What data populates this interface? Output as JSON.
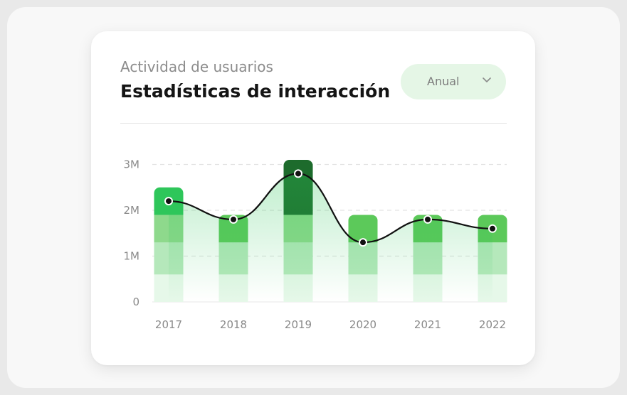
{
  "header": {
    "subtitle": "Actividad de usuarios",
    "title": "Estadísticas de interacción"
  },
  "period_select": {
    "selected": "Anual",
    "icon": "chevron-down-icon"
  },
  "colors": {
    "bar_top": [
      "#2ec65a",
      "#5cc95a",
      "#1d6b2c",
      "#5cc95a",
      "#5cc95a",
      "#5cc95a"
    ],
    "segment_mid": "#8ed98c",
    "segment_low": "#b5e8bb",
    "segment_base": "#e6f8e9",
    "line": "#111111",
    "area": "#2ec65a",
    "grid": "#e3e3e3"
  },
  "chart_data": {
    "type": "bar",
    "categories": [
      "2017",
      "2018",
      "2019",
      "2020",
      "2021",
      "2022"
    ],
    "values": [
      2.5,
      1.9,
      3.1,
      1.9,
      1.9,
      1.9
    ],
    "segment_breaks": [
      0.6,
      1.3,
      1.9
    ],
    "line_values": [
      2.2,
      1.8,
      2.8,
      1.3,
      1.8,
      1.6
    ],
    "yticks": [
      {
        "value": 0,
        "label": "0"
      },
      {
        "value": 1,
        "label": "1M"
      },
      {
        "value": 2,
        "label": "2M"
      },
      {
        "value": 3,
        "label": "3M"
      }
    ],
    "ylim": [
      0,
      3.1
    ],
    "grid": true,
    "xlabel": "",
    "ylabel": ""
  }
}
